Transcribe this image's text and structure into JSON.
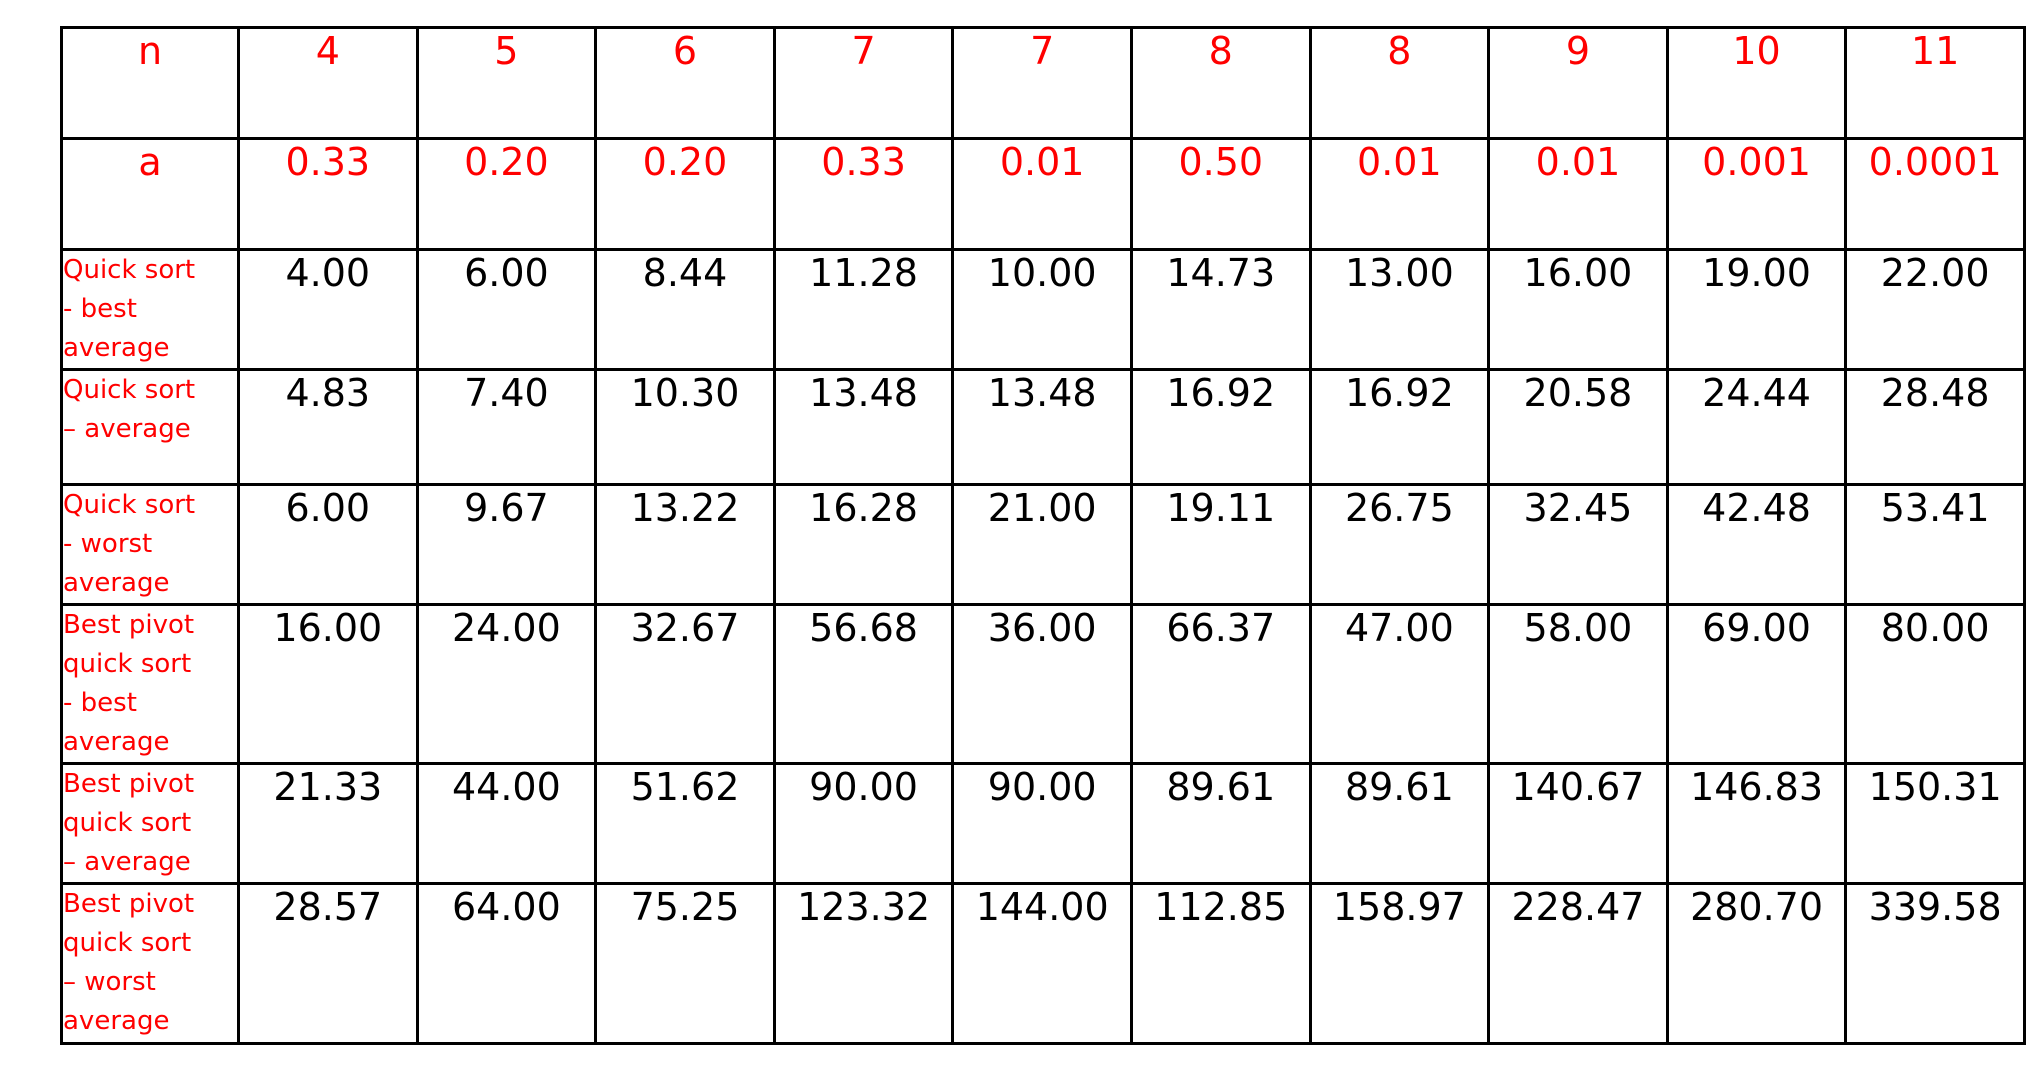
{
  "table": {
    "header": {
      "label": "n",
      "values": [
        "4",
        "5",
        "6",
        "7",
        "7",
        "8",
        "8",
        "9",
        "10",
        "11"
      ]
    },
    "param": {
      "label": "a",
      "values": [
        "0.33",
        "0.20",
        "0.20",
        "0.33",
        "0.01",
        "0.50",
        "0.01",
        "0.01",
        "0.001",
        "0.0001"
      ]
    },
    "rows": [
      {
        "label_lines": [
          "Quick sort",
          "- best",
          "average"
        ],
        "values": [
          "4.00",
          "6.00",
          "8.44",
          "11.28",
          "10.00",
          "14.73",
          "13.00",
          "16.00",
          "19.00",
          "22.00"
        ]
      },
      {
        "label_lines": [
          "Quick sort",
          "– average"
        ],
        "values": [
          "4.83",
          "7.40",
          "10.30",
          "13.48",
          "13.48",
          "16.92",
          "16.92",
          "20.58",
          "24.44",
          "28.48"
        ]
      },
      {
        "label_lines": [
          "Quick sort",
          "- worst",
          "average"
        ],
        "values": [
          "6.00",
          "9.67",
          "13.22",
          "16.28",
          "21.00",
          "19.11",
          "26.75",
          "32.45",
          "42.48",
          "53.41"
        ]
      },
      {
        "label_lines": [
          "Best pivot",
          "quick sort",
          "- best",
          "average"
        ],
        "values": [
          "16.00",
          "24.00",
          "32.67",
          "56.68",
          "36.00",
          "66.37",
          "47.00",
          "58.00",
          "69.00",
          "80.00"
        ]
      },
      {
        "label_lines": [
          "Best pivot",
          "quick sort",
          "– average"
        ],
        "values": [
          "21.33",
          "44.00",
          "51.62",
          "90.00",
          "90.00",
          "89.61",
          "89.61",
          "140.67",
          "146.83",
          "150.31"
        ]
      },
      {
        "label_lines": [
          "Best pivot",
          "quick sort",
          "– worst",
          "average"
        ],
        "values": [
          "28.57",
          "64.00",
          "75.25",
          "123.32",
          "144.00",
          "112.85",
          "158.97",
          "228.47",
          "280.70",
          "339.58"
        ]
      }
    ]
  }
}
